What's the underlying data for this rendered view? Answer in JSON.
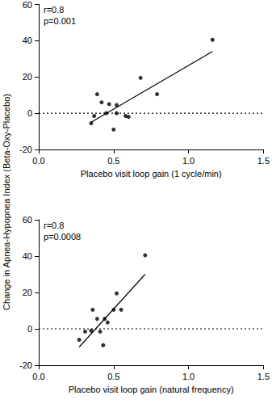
{
  "chart_data": [
    {
      "type": "scatter",
      "ylabel": "Change in Apnea-Hypopnea Index (Beta-Oxy-Placebo)",
      "xlabel": "Placebo visit loop gain (1 cycle/min)",
      "annotations": [
        "r=0.8",
        "p=0.001"
      ],
      "x": [
        0.35,
        0.37,
        0.39,
        0.42,
        0.45,
        0.47,
        0.5,
        0.52,
        0.52,
        0.58,
        0.6,
        0.68,
        0.79,
        1.16
      ],
      "values": [
        -5.5,
        -1.5,
        10.5,
        6,
        0,
        5,
        -9,
        4.5,
        0,
        -1.5,
        -2,
        19.5,
        10.5,
        40.5
      ],
      "fit": {
        "x": [
          0.35,
          1.16
        ],
        "y": [
          -5,
          34
        ]
      },
      "hline": 0,
      "color": "#000000",
      "xlim": [
        0,
        1.5
      ],
      "xticks": [
        {
          "value": 0,
          "label": "0.0"
        },
        {
          "value": 0.5,
          "label": "0.5"
        },
        {
          "value": 1,
          "label": "1.0"
        },
        {
          "value": 1.5,
          "label": "1.5"
        }
      ],
      "ylim": [
        -20,
        60
      ],
      "yticks": [
        -20,
        0,
        20,
        40,
        60
      ],
      "grid": false
    },
    {
      "type": "scatter",
      "xlabel": "Placebo visit loop gain (natural frequency)",
      "annotations": [
        "r=0.8",
        "p=0.0008"
      ],
      "x": [
        0.27,
        0.31,
        0.35,
        0.36,
        0.39,
        0.41,
        0.43,
        0.44,
        0.46,
        0.5,
        0.52,
        0.55,
        0.71
      ],
      "values": [
        -6,
        -1.5,
        -1,
        10.5,
        5.5,
        -1.5,
        -9,
        5.5,
        3.5,
        10.5,
        19.5,
        10.5,
        40.5
      ],
      "fit": {
        "x": [
          0.27,
          0.71
        ],
        "y": [
          -10,
          30
        ]
      },
      "hline": 0,
      "color": "#000000",
      "xlim": [
        0,
        1.5
      ],
      "xticks": [
        {
          "value": 0,
          "label": "0.0"
        },
        {
          "value": 0.5,
          "label": "0.5"
        },
        {
          "value": 1,
          "label": "1.0"
        },
        {
          "value": 1.5,
          "label": "1.5"
        }
      ],
      "ylim": [
        -20,
        60
      ],
      "yticks": [
        -20,
        0,
        20,
        40,
        60
      ],
      "grid": false
    }
  ]
}
